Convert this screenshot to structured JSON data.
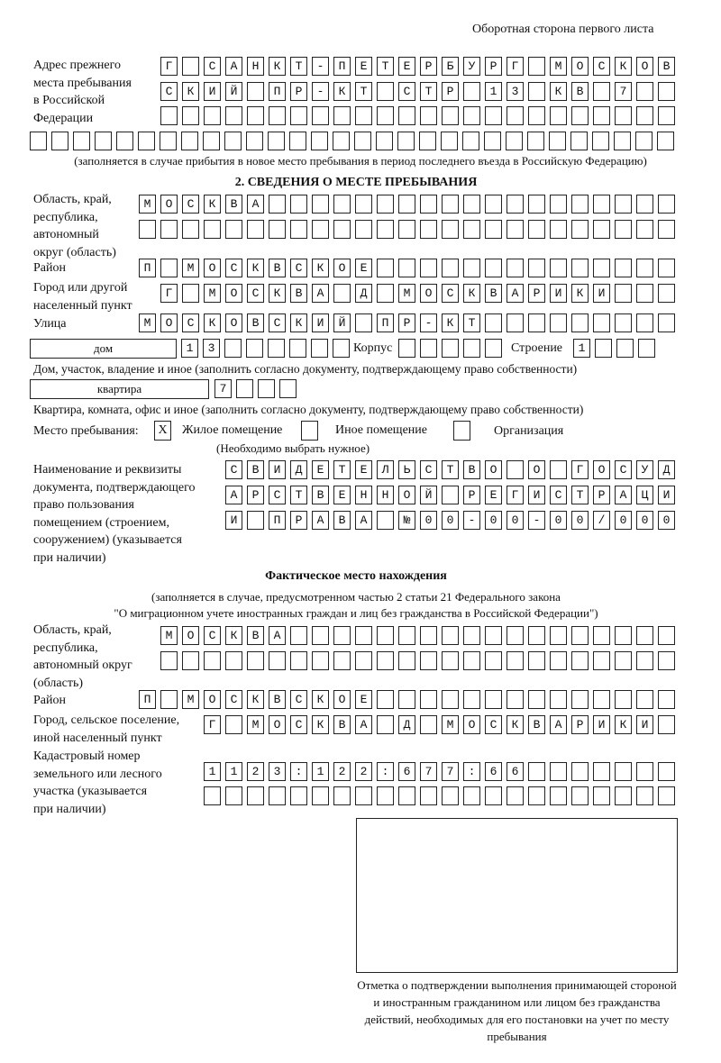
{
  "header": {
    "title": "Оборотная сторона первого листа"
  },
  "prev_address": {
    "label": [
      "Адрес прежнего",
      "места пребывания",
      "в Российской",
      "Федерации"
    ],
    "rows": [
      "Г САНКТ-ПЕТЕРБУРГ МОСКОВ",
      "СКИЙ ПР-КТ СТР 13 КВ 7  ",
      "                        ",
      "                              "
    ],
    "note": "(заполняется в случае прибытия в новое место пребывания в период последнего въезда в Российскую Федерацию)"
  },
  "section2": {
    "heading": "2. СВЕДЕНИЯ О МЕСТЕ ПРЕБЫВАНИЯ",
    "region_label": [
      "Область, край,",
      "республика,",
      "автономный",
      "округ (область)"
    ],
    "region_rows": [
      "МОСКВА                   ",
      "                         "
    ],
    "district_label": "Район",
    "district_row": "П МОСКВСКОЕ              ",
    "city_label": [
      "Город или другой",
      "населенный пункт"
    ],
    "city_row": "Г МОСКВА Д МОСКВАРИКИ   ",
    "street_label": "Улица",
    "street_row": "МОСКОВСКИЙ ПР-КТ         ",
    "house_type": "дом",
    "house_row": "13      ",
    "korpus_label": "Корпус",
    "korpus_row": "     ",
    "building_label": "Строение",
    "building_row": "1   ",
    "house_note": "Дом, участок, владение и иное (заполнить согласно документу, подтверждающему право собственности)",
    "apt_type": "квартира",
    "apt_row": "7   ",
    "apt_note": "Квартира, комната, офис и иное (заполнить согласно документу, подтверждающему право собственности)",
    "stay_label": "Место пребывания:",
    "stay_options": [
      {
        "label": "Жилое помещение",
        "mark": "X"
      },
      {
        "label": "Иное помещение",
        "mark": ""
      },
      {
        "label": "Организация",
        "mark": ""
      }
    ],
    "stay_note": "(Необходимо выбрать нужное)",
    "doc_label": [
      "Наименование и реквизиты",
      "документа, подтверждающего",
      "право пользования",
      "помещением (строением,",
      "сооружением) (указывается",
      "при наличии)"
    ],
    "doc_rows": [
      "СВИДЕТЕЛЬСТВО О ГОСУД",
      "АРСТВЕННОЙ РЕГИСТРАЦИ",
      "И ПРАВА №00-00-00/000"
    ]
  },
  "actual": {
    "heading": "Фактическое место нахождения",
    "note": [
      "(заполняется в случае, предусмотренном частью 2 статьи 21 Федерального закона",
      "\"О миграционном учете иностранных граждан и лиц без гражданства в Российской Федерации\")"
    ],
    "region_label": [
      "Область, край,",
      "республика,",
      "автономный округ",
      "(область)"
    ],
    "region_rows": [
      "МОСКВА                  ",
      "                        "
    ],
    "district_label": "Район",
    "district_row": "П МОСКВСКОЕ              ",
    "city_label": [
      "Город, сельское поселение,",
      "иной населенный пункт"
    ],
    "city_row": "Г МОСКВА Д МОСКВАРИКИ ",
    "cadastre_label": [
      "Кадастровый номер",
      "земельного или лесного",
      "участка (указывается",
      "при наличии)"
    ],
    "cadastre_rows": [
      "1123:122:677:66       ",
      "                      "
    ]
  },
  "confirmation": {
    "caption": "Отметка о подтверждении выполнения принимающей стороной и иностранным гражданином или лицом без гражданства действий, необходимых для его постановки на учет по месту пребывания"
  }
}
